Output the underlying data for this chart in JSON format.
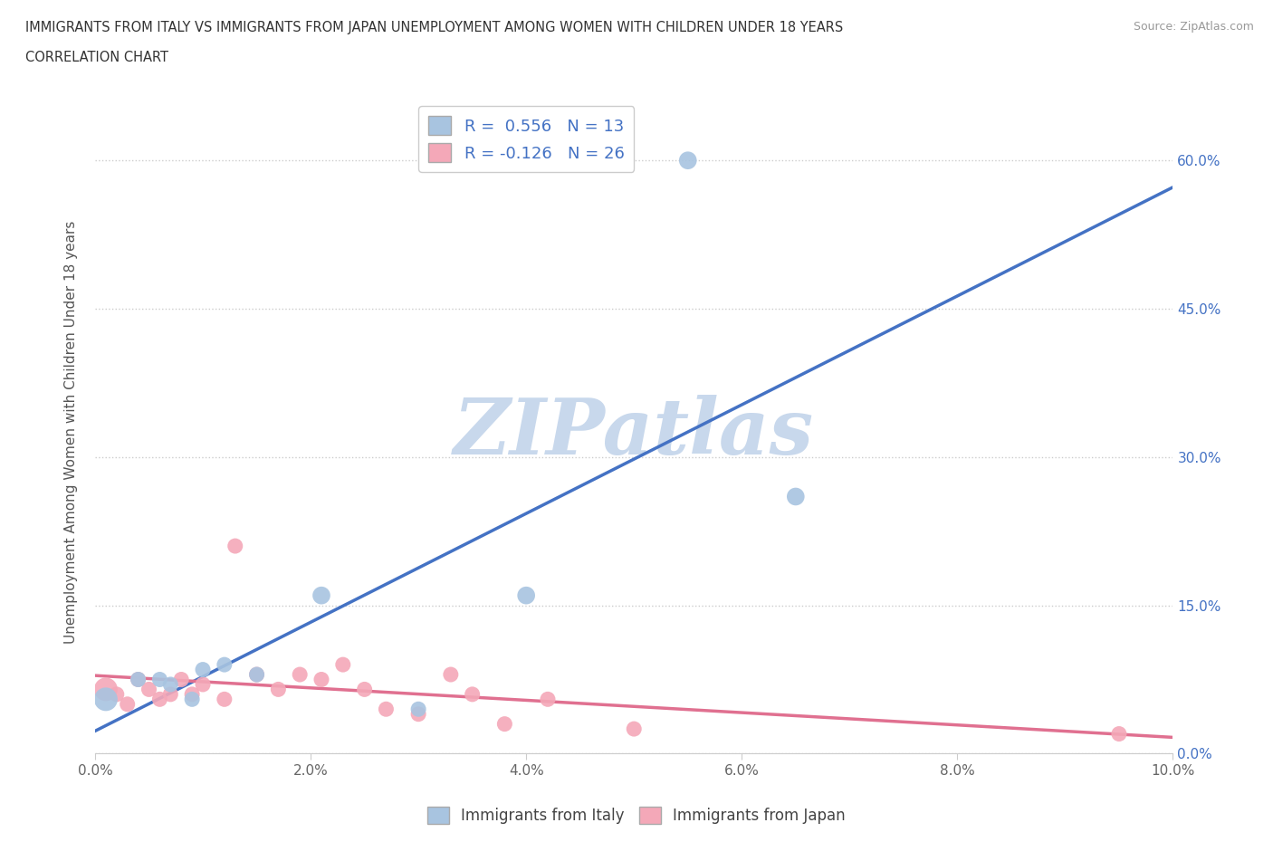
{
  "title_line1": "IMMIGRANTS FROM ITALY VS IMMIGRANTS FROM JAPAN UNEMPLOYMENT AMONG WOMEN WITH CHILDREN UNDER 18 YEARS",
  "title_line2": "CORRELATION CHART",
  "source_text": "Source: ZipAtlas.com",
  "ylabel": "Unemployment Among Women with Children Under 18 years",
  "xlim": [
    0.0,
    0.1
  ],
  "ylim": [
    0.0,
    0.65
  ],
  "xticks": [
    0.0,
    0.02,
    0.04,
    0.06,
    0.08,
    0.1
  ],
  "xticklabels": [
    "0.0%",
    "2.0%",
    "4.0%",
    "6.0%",
    "8.0%",
    "10.0%"
  ],
  "yticks": [
    0.0,
    0.15,
    0.3,
    0.45,
    0.6
  ],
  "yticklabels": [
    "0.0%",
    "15.0%",
    "30.0%",
    "45.0%",
    "60.0%"
  ],
  "grid_color": "#cccccc",
  "background_color": "#ffffff",
  "watermark_text": "ZIPatlas",
  "watermark_color": "#c8d8ec",
  "italy_color": "#a8c4e0",
  "japan_color": "#f4a8b8",
  "italy_line_color": "#4472c4",
  "japan_line_color": "#e07090",
  "tick_color": "#4472c4",
  "legend_italy_label": "R =  0.556   N = 13",
  "legend_japan_label": "R = -0.126   N = 26",
  "legend_italy_name": "Immigrants from Italy",
  "legend_japan_name": "Immigrants from Japan",
  "italy_x": [
    0.001,
    0.004,
    0.006,
    0.007,
    0.009,
    0.01,
    0.012,
    0.015,
    0.021,
    0.03,
    0.04,
    0.065,
    0.055
  ],
  "italy_y": [
    0.055,
    0.075,
    0.075,
    0.07,
    0.055,
    0.085,
    0.09,
    0.08,
    0.16,
    0.045,
    0.16,
    0.26,
    0.6
  ],
  "italy_sizes": [
    350,
    150,
    150,
    150,
    150,
    150,
    150,
    150,
    200,
    150,
    200,
    200,
    200
  ],
  "japan_x": [
    0.001,
    0.002,
    0.003,
    0.004,
    0.005,
    0.006,
    0.007,
    0.008,
    0.009,
    0.01,
    0.012,
    0.013,
    0.015,
    0.017,
    0.019,
    0.021,
    0.023,
    0.025,
    0.027,
    0.03,
    0.033,
    0.035,
    0.038,
    0.042,
    0.05,
    0.095
  ],
  "japan_y": [
    0.065,
    0.06,
    0.05,
    0.075,
    0.065,
    0.055,
    0.06,
    0.075,
    0.06,
    0.07,
    0.055,
    0.21,
    0.08,
    0.065,
    0.08,
    0.075,
    0.09,
    0.065,
    0.045,
    0.04,
    0.08,
    0.06,
    0.03,
    0.055,
    0.025,
    0.02
  ],
  "japan_sizes": [
    350,
    150,
    150,
    150,
    150,
    150,
    150,
    150,
    150,
    150,
    150,
    150,
    150,
    150,
    150,
    150,
    150,
    150,
    150,
    150,
    150,
    150,
    150,
    150,
    150,
    150
  ]
}
